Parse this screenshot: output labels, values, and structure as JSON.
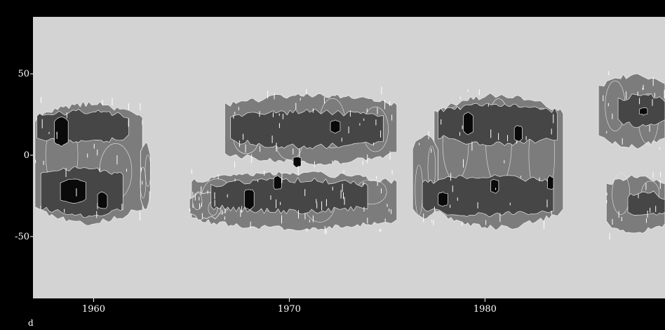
{
  "chart_data": {
    "type": "heatmap",
    "title": "",
    "xlabel": "",
    "ylabel": "",
    "xlim": [
      1956.9,
      1989.2
    ],
    "ylim": [
      -88,
      85
    ],
    "x_ticks": [
      1960,
      1970,
      1980
    ],
    "x_tick_labels": [
      "1960",
      "1970",
      "1980"
    ],
    "y_ticks": [
      50,
      0,
      -50
    ],
    "y_tick_labels": [
      "50",
      "0",
      "-50"
    ],
    "corner_label": "d",
    "grid": false,
    "legend": "none",
    "colors": {
      "background": "#000000",
      "plot_background": "#d3d3d3",
      "level_1_fill": "#7c7c7c",
      "level_2_fill": "#464646",
      "level_3_fill": "#0a0a0a",
      "contour_line": "#e6e6e6",
      "axis_text": "#ffffff",
      "speck": "#ffffff"
    },
    "levels": [
      "level_1",
      "level_2",
      "level_3"
    ],
    "regions": [
      {
        "level": 1,
        "x": [
          1957.0,
          1962.5
        ],
        "y": [
          -45,
          35
        ]
      },
      {
        "level": 1,
        "x": [
          1962.4,
          1962.9
        ],
        "y": [
          -35,
          10
        ]
      },
      {
        "level": 2,
        "x": [
          1957.1,
          1961.8
        ],
        "y": [
          5,
          30
        ]
      },
      {
        "level": 2,
        "x": [
          1957.3,
          1961.5
        ],
        "y": [
          -40,
          -5
        ]
      },
      {
        "level": 3,
        "x": [
          1958.0,
          1958.7
        ],
        "y": [
          5,
          24
        ]
      },
      {
        "level": 3,
        "x": [
          1958.3,
          1959.6
        ],
        "y": [
          -30,
          -14
        ]
      },
      {
        "level": 3,
        "x": [
          1960.2,
          1960.7
        ],
        "y": [
          -34,
          -22
        ]
      },
      {
        "level": 1,
        "x": [
          1966.7,
          1975.5
        ],
        "y": [
          -8,
          40
        ]
      },
      {
        "level": 1,
        "x": [
          1965.0,
          1975.5
        ],
        "y": [
          -48,
          -8
        ]
      },
      {
        "level": 1,
        "x": [
          1964.9,
          1966.5
        ],
        "y": [
          -42,
          -20
        ]
      },
      {
        "level": 2,
        "x": [
          1967.0,
          1974.8
        ],
        "y": [
          2,
          30
        ]
      },
      {
        "level": 2,
        "x": [
          1966.0,
          1974.0
        ],
        "y": [
          -38,
          -12
        ]
      },
      {
        "level": 3,
        "x": [
          1967.7,
          1968.2
        ],
        "y": [
          -34,
          -20
        ]
      },
      {
        "level": 3,
        "x": [
          1969.2,
          1969.6
        ],
        "y": [
          -22,
          -12
        ]
      },
      {
        "level": 3,
        "x": [
          1972.1,
          1972.6
        ],
        "y": [
          13,
          22
        ]
      },
      {
        "level": 3,
        "x": [
          1970.2,
          1970.6
        ],
        "y": [
          -8,
          0
        ]
      },
      {
        "level": 1,
        "x": [
          1977.4,
          1984.0
        ],
        "y": [
          -48,
          40
        ]
      },
      {
        "level": 1,
        "x": [
          1976.3,
          1977.6
        ],
        "y": [
          -42,
          15
        ]
      },
      {
        "level": 2,
        "x": [
          1977.6,
          1983.7
        ],
        "y": [
          4,
          34
        ]
      },
      {
        "level": 2,
        "x": [
          1976.8,
          1983.5
        ],
        "y": [
          -40,
          -10
        ]
      },
      {
        "level": 3,
        "x": [
          1978.9,
          1979.4
        ],
        "y": [
          12,
          27
        ]
      },
      {
        "level": 3,
        "x": [
          1981.5,
          1981.9
        ],
        "y": [
          8,
          19
        ]
      },
      {
        "level": 3,
        "x": [
          1977.6,
          1978.1
        ],
        "y": [
          -32,
          -22
        ]
      },
      {
        "level": 3,
        "x": [
          1980.3,
          1980.7
        ],
        "y": [
          -24,
          -14
        ]
      },
      {
        "level": 3,
        "x": [
          1983.2,
          1983.5
        ],
        "y": [
          -22,
          -12
        ]
      },
      {
        "level": 1,
        "x": [
          1985.8,
          1989.2
        ],
        "y": [
          2,
          52
        ]
      },
      {
        "level": 1,
        "x": [
          1986.2,
          1989.2
        ],
        "y": [
          -50,
          -10
        ]
      },
      {
        "level": 2,
        "x": [
          1986.8,
          1989.2
        ],
        "y": [
          15,
          40
        ]
      },
      {
        "level": 2,
        "x": [
          1987.3,
          1989.2
        ],
        "y": [
          -40,
          -20
        ]
      },
      {
        "level": 3,
        "x": [
          1987.9,
          1988.3
        ],
        "y": [
          24,
          30
        ]
      }
    ]
  }
}
